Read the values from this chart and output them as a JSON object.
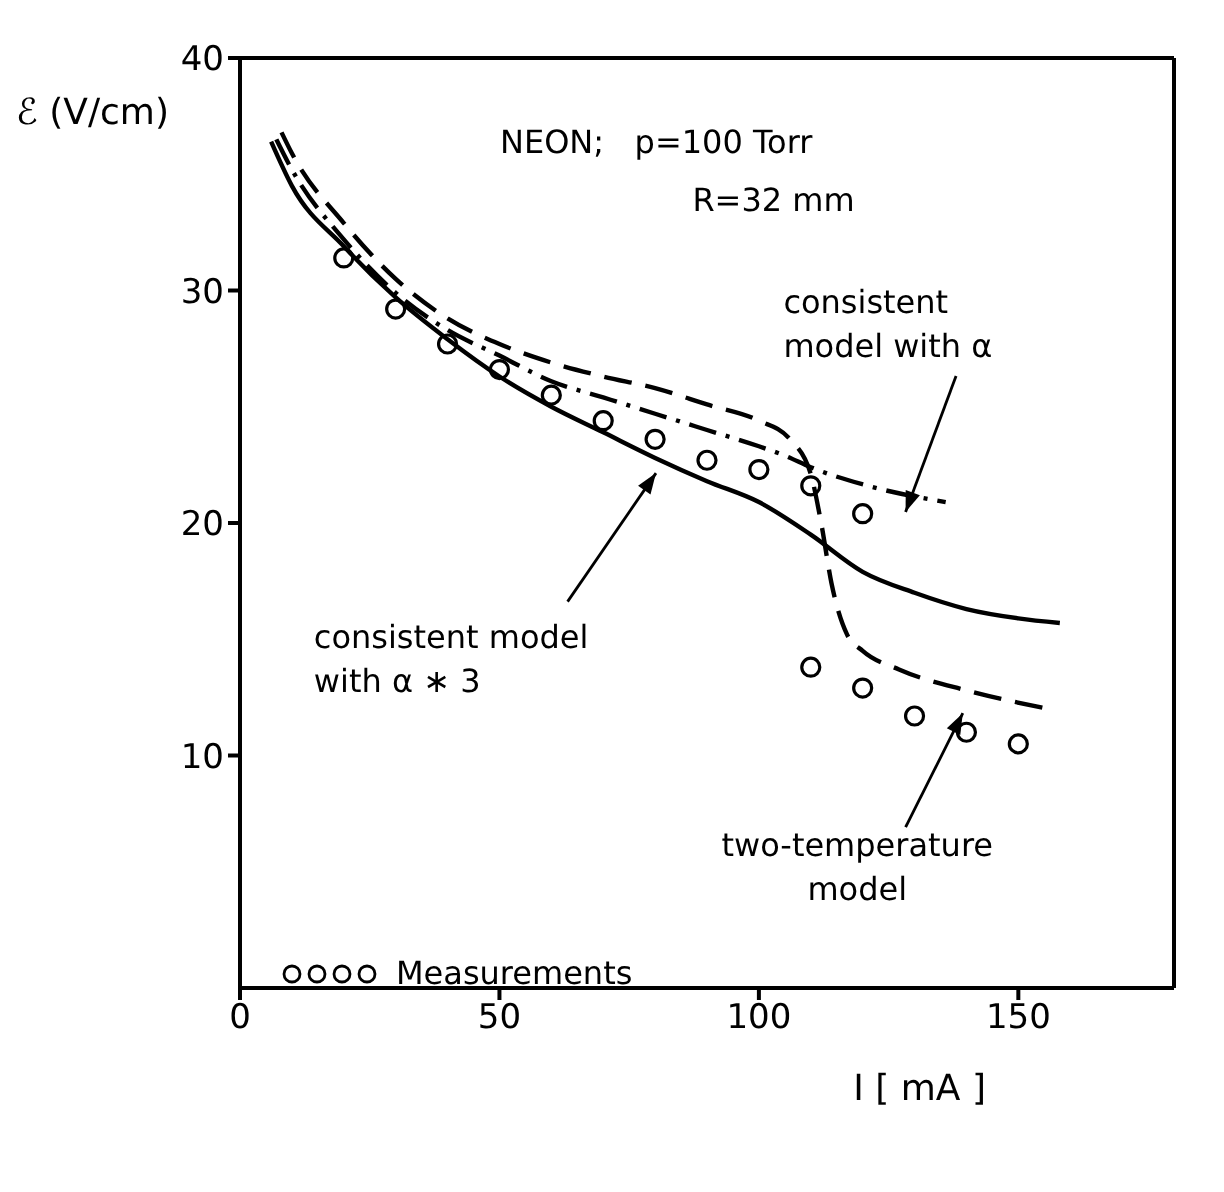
{
  "chart_data": {
    "type": "line",
    "xlabel": "I [ mA ]",
    "ylabel": "ℰ (V/cm)",
    "xlim": [
      0,
      180
    ],
    "xticks": [
      0,
      50,
      100,
      150
    ],
    "ylim": [
      0,
      40
    ],
    "yticks": [
      10,
      20,
      30,
      40
    ],
    "legend": "bottom left",
    "series": [
      {
        "name": "Measurements",
        "type": "scatter",
        "marker": "circle",
        "color": "#000000",
        "x": [
          20,
          30,
          40,
          50,
          60,
          70,
          80,
          90,
          100,
          110,
          120,
          110,
          120,
          130,
          140,
          150
        ],
        "values": [
          31.4,
          29.2,
          27.7,
          26.6,
          25.5,
          24.4,
          23.6,
          22.7,
          22.3,
          21.6,
          20.4,
          13.8,
          12.9,
          11.7,
          11.0,
          10.5
        ]
      },
      {
        "line_style": "solid",
        "marker": "none",
        "color": "#000000",
        "x": [
          6,
          10,
          20,
          30,
          40,
          50,
          60,
          70,
          80,
          90,
          100,
          110,
          120,
          130,
          140,
          150,
          158
        ],
        "values": [
          36.4,
          34.5,
          31.9,
          29.7,
          27.9,
          26.3,
          25.0,
          23.9,
          22.8,
          21.8,
          20.9,
          19.5,
          17.9,
          17.0,
          16.3,
          15.9,
          15.7
        ]
      },
      {
        "line_style": "dashdot",
        "marker": "none",
        "color": "#000000",
        "x": [
          7,
          10,
          20,
          30,
          40,
          50,
          60,
          70,
          80,
          90,
          100,
          105,
          110,
          121,
          136
        ],
        "values": [
          36.5,
          35.2,
          32.2,
          29.9,
          28.3,
          27.2,
          26.1,
          25.4,
          24.7,
          24.0,
          23.3,
          22.9,
          22.4,
          21.6,
          20.9
        ]
      },
      {
        "line_style": "dashed",
        "marker": "none",
        "color": "#000000",
        "x": [
          8,
          10,
          20,
          30,
          40,
          50,
          60,
          70,
          80,
          90,
          100,
          106,
          110,
          112,
          114,
          117,
          120,
          127,
          140,
          156
        ],
        "values": [
          36.8,
          35.9,
          32.9,
          30.5,
          28.8,
          27.7,
          26.9,
          26.3,
          25.8,
          25.1,
          24.4,
          23.6,
          22.1,
          20.0,
          17.4,
          15.2,
          14.5,
          13.7,
          12.8,
          12.0
        ]
      }
    ],
    "annotations": [
      "NEON;   p=100 Torr",
      "R=32 mm",
      {
        "text": "consistent\nmodel with α",
        "x": 128,
        "y": 21.2
      },
      {
        "text": "consistent model\nwith α ∗ 3",
        "x": 80,
        "y": 22.8
      },
      "two-temperature\nmodel"
    ]
  }
}
